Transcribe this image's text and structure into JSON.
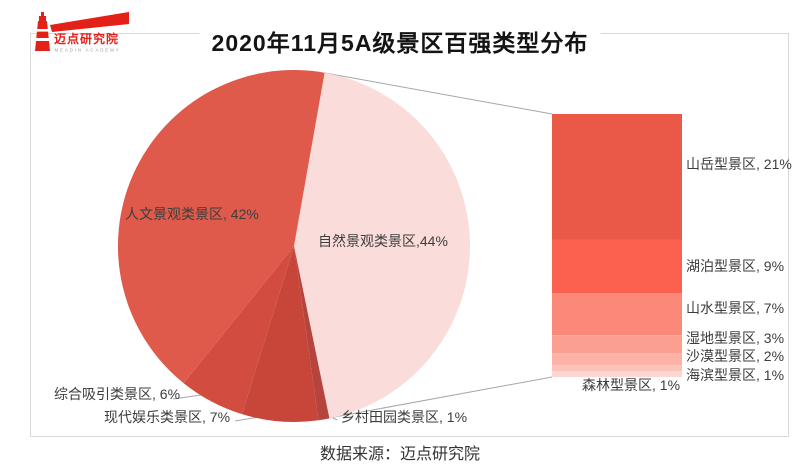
{
  "header": {
    "logo": {
      "cn": "迈点研究院",
      "en": "MEADIN ACADEMY"
    },
    "title": "2020年11月5A级景区百强类型分布"
  },
  "footer": {
    "source": "数据来源：迈点研究院"
  },
  "chart_data": {
    "type": "pie",
    "subtype": "bar-of-pie",
    "title": "2020年11月5A级景区百强类型分布",
    "unit": "%",
    "start_angle_deg": 10,
    "legend": "none (labels on chart)",
    "slices": [
      {
        "name": "自然景观类景区",
        "value": 44,
        "label": "自然景观类景区,44%",
        "color": "#FADCDA"
      },
      {
        "name": "乡村田园类景区",
        "value": 1,
        "label": "乡村田园类景区, 1%",
        "color": "#B5443D"
      },
      {
        "name": "现代娱乐类景区",
        "value": 7,
        "label": "现代娱乐类景区, 7%",
        "color": "#C74539"
      },
      {
        "name": "综合吸引类景区",
        "value": 6,
        "label": "综合吸引类景区, 6%",
        "color": "#D24C3F"
      },
      {
        "name": "人文景观类景区",
        "value": 42,
        "label": "人文景观类景区, 42%",
        "color": "#E05A4B"
      }
    ],
    "breakdown_bar": {
      "parent": "自然景观类景区",
      "total": 44,
      "segments": [
        {
          "name": "山岳型景区",
          "value": 21,
          "label": "山岳型景区, 21%",
          "color": "#EA5948"
        },
        {
          "name": "湖泊型景区",
          "value": 9,
          "label": "湖泊型景区, 9%",
          "color": "#FC604E"
        },
        {
          "name": "山水型景区",
          "value": 7,
          "label": "山水型景区, 7%",
          "color": "#FB8979"
        },
        {
          "name": "湿地型景区",
          "value": 3,
          "label": "湿地型景区, 3%",
          "color": "#FB9F90"
        },
        {
          "name": "沙漠型景区",
          "value": 2,
          "label": "沙漠型景区, 2%",
          "color": "#FCB2A6"
        },
        {
          "name": "海滨型景区",
          "value": 1,
          "label": "海滨型景区, 1%",
          "color": "#FCC3BA"
        },
        {
          "name": "森林型景区",
          "value": 1,
          "label": "森林型景区, 1%",
          "color": "#FDD7D0"
        }
      ]
    }
  }
}
